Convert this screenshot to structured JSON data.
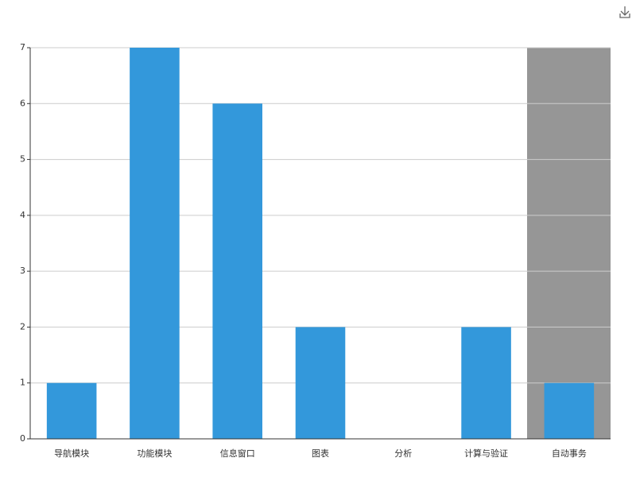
{
  "chart_data": {
    "type": "bar",
    "categories": [
      "导航模块",
      "功能模块",
      "信息窗口",
      "图表",
      "分析",
      "计算与验证",
      "自动事务"
    ],
    "values": [
      1,
      7,
      6,
      2,
      0,
      2,
      1
    ],
    "color": "#3398db",
    "ylim": [
      0,
      7
    ],
    "yticks": [
      0,
      1,
      2,
      3,
      4,
      5,
      6,
      7
    ],
    "grid": true
  }
}
